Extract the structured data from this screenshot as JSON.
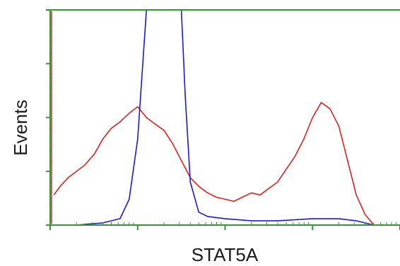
{
  "chart_data": {
    "type": "line",
    "xlabel": "STAT5A",
    "ylabel": "Events",
    "x_scale": "log",
    "xlim": [
      1,
      10000
    ],
    "ylim": [
      0,
      100
    ],
    "grid": false,
    "colors": {
      "axes": "#2e9b2e",
      "background": "#ffffff"
    },
    "series": [
      {
        "color": "#e02020",
        "x": [
          1.1,
          1.3,
          1.6,
          2,
          2.5,
          3.2,
          4,
          5,
          6.3,
          8,
          10,
          12.6,
          15.8,
          20,
          25,
          31.6,
          40,
          50,
          63,
          79,
          100,
          126,
          158,
          200,
          251,
          316,
          398,
          501,
          631,
          794,
          1000,
          1259,
          1585,
          1995,
          2512,
          3162,
          3981,
          5012
        ],
        "y": [
          14,
          18,
          22,
          25,
          28,
          33,
          40,
          45,
          48,
          52,
          55,
          50,
          47,
          44,
          38,
          30,
          22,
          18,
          15,
          13,
          12,
          11,
          13,
          15,
          14,
          17,
          20,
          26,
          32,
          40,
          50,
          57,
          54,
          46,
          30,
          14,
          5,
          0
        ]
      },
      {
        "color": "#1a1ad8",
        "x": [
          1.1,
          2,
          4,
          6.3,
          8,
          10,
          12.6,
          15.8,
          20,
          25,
          31.6,
          35,
          40,
          50,
          63,
          100,
          200,
          400,
          1000,
          2000,
          3162,
          5012
        ],
        "y": [
          0,
          0,
          1,
          3,
          12,
          40,
          100,
          100,
          100,
          100,
          100,
          60,
          20,
          6,
          4,
          3,
          2,
          2,
          3,
          3,
          2,
          0
        ]
      }
    ]
  }
}
